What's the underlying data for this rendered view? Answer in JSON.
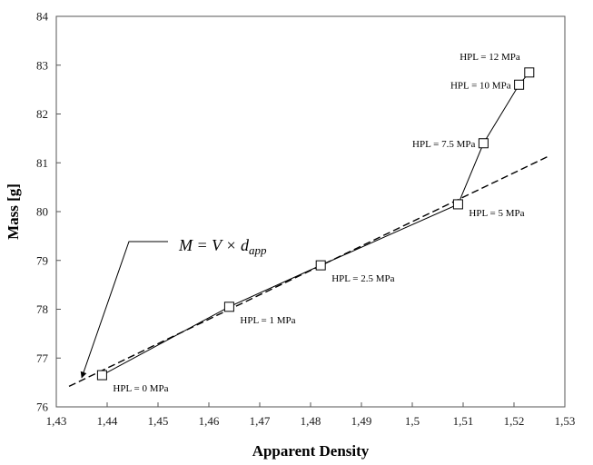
{
  "chart_data": {
    "type": "scatter",
    "title": "",
    "xlabel": "Apparent Density",
    "ylabel": "Mass [g]",
    "xlim": [
      1.43,
      1.53
    ],
    "ylim": [
      76,
      84
    ],
    "x_ticks": [
      "1,43",
      "1,44",
      "1,45",
      "1,46",
      "1,47",
      "1,48",
      "1,49",
      "1,5",
      "1,51",
      "1,52",
      "1,53"
    ],
    "y_ticks": [
      "76",
      "77",
      "78",
      "79",
      "80",
      "81",
      "82",
      "83",
      "84"
    ],
    "grid": false,
    "legend": "none",
    "series": [
      {
        "marker": "square",
        "line": "solid",
        "points": [
          {
            "x": 1.439,
            "y": 76.65,
            "label": "HPL = 0 MPa"
          },
          {
            "x": 1.464,
            "y": 78.05,
            "label": "HPL = 1 MPa"
          },
          {
            "x": 1.482,
            "y": 78.9,
            "label": "HPL = 2.5 MPa"
          },
          {
            "x": 1.509,
            "y": 80.15,
            "label": "HPL = 5 MPa"
          },
          {
            "x": 1.514,
            "y": 81.4,
            "label": "HPL = 7.5 MPa"
          },
          {
            "x": 1.521,
            "y": 82.6,
            "label": "HPL = 10 MPa"
          },
          {
            "x": 1.523,
            "y": 82.85,
            "label": "HPL = 12 MPa"
          }
        ]
      }
    ],
    "fit_line": {
      "style": "dashed",
      "x": [
        1.4325,
        1.5265
      ],
      "y": [
        76.42,
        81.12
      ]
    },
    "annotation": {
      "eq_main": "M",
      "eq_mid": " = V × ",
      "eq_sym": "d",
      "eq_sub": "app",
      "arrow_to": {
        "x": 1.435,
        "y": 76.6
      }
    },
    "colors": {
      "marker_fill": "#ffffff",
      "stroke": "#000000",
      "axis": "#555555"
    }
  }
}
